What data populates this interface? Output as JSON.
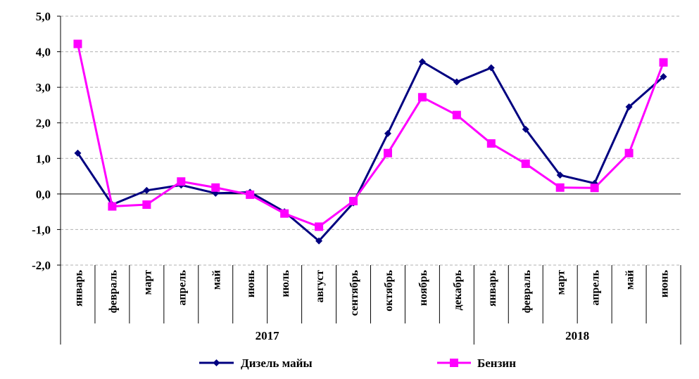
{
  "chart_data": {
    "type": "line",
    "title": "",
    "xlabel": "",
    "ylabel": "",
    "ylim": [
      -2,
      5
    ],
    "yticks": [
      "-2,0",
      "-1,0",
      "0,0",
      "1,0",
      "2,0",
      "3,0",
      "4,0",
      "5,0"
    ],
    "ytick_values": [
      -2,
      -1,
      0,
      1,
      2,
      3,
      4,
      5
    ],
    "grid": true,
    "categories": [
      "январь",
      "февраль",
      "март",
      "апрель",
      "май",
      "июнь",
      "июль",
      "август",
      "сентябрь",
      "октябрь",
      "ноябрь",
      "декабрь",
      "январь",
      "февраль",
      "март",
      "апрель",
      "май",
      "июнь"
    ],
    "year_groups": [
      {
        "label": "2017",
        "count": 12
      },
      {
        "label": "2018",
        "count": 6
      }
    ],
    "legend_position": "bottom",
    "series": [
      {
        "name": "Дизель майы",
        "color": "#000080",
        "marker": "diamond",
        "values": [
          1.15,
          -0.3,
          0.1,
          0.25,
          0.02,
          0.05,
          -0.5,
          -1.32,
          -0.25,
          1.7,
          3.72,
          3.15,
          3.55,
          1.82,
          0.53,
          0.3,
          2.45,
          3.3
        ]
      },
      {
        "name": "Бензин",
        "color": "#FF00FF",
        "marker": "square",
        "values": [
          4.22,
          -0.35,
          -0.3,
          0.35,
          0.18,
          -0.02,
          -0.55,
          -0.92,
          -0.2,
          1.15,
          2.72,
          2.22,
          1.42,
          0.85,
          0.18,
          0.17,
          1.15,
          3.7
        ]
      }
    ]
  }
}
